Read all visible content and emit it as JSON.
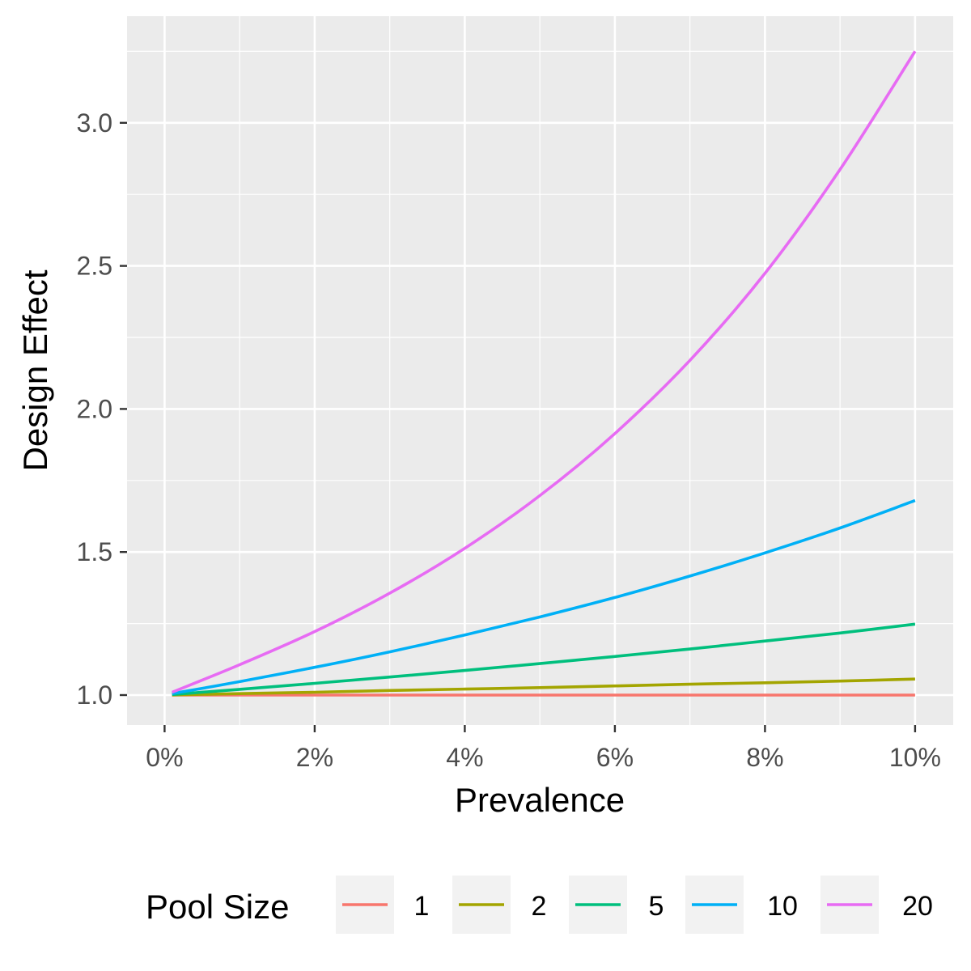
{
  "chart_data": {
    "type": "line",
    "title": "",
    "xlabel": "Prevalence",
    "ylabel": "Design Effect",
    "xlim": [
      0,
      0.1
    ],
    "ylim": [
      0.9,
      3.25
    ],
    "x_ticks": [
      0,
      0.02,
      0.04,
      0.06,
      0.08,
      0.1
    ],
    "x_tick_labels": [
      "0%",
      "2%",
      "4%",
      "6%",
      "8%",
      "10%"
    ],
    "y_ticks": [
      1.0,
      1.5,
      2.0,
      2.5,
      3.0
    ],
    "y_tick_labels": [
      "1.0",
      "1.5",
      "2.0",
      "2.5",
      "3.0"
    ],
    "grid": true,
    "legend": {
      "title": "Pool Size",
      "position": "bottom"
    },
    "x": [
      0.001,
      0.01,
      0.02,
      0.03,
      0.04,
      0.05,
      0.06,
      0.07,
      0.08,
      0.09,
      0.1
    ],
    "series": [
      {
        "name": "1",
        "color": "#F8766D",
        "values": [
          1.0,
          1.0,
          1.0,
          1.0,
          1.0,
          1.0,
          1.0,
          1.0,
          1.0,
          1.0,
          1.0
        ]
      },
      {
        "name": "2",
        "color": "#A3A500",
        "values": [
          1.0005,
          1.005,
          1.01,
          1.016,
          1.021,
          1.026,
          1.032,
          1.038,
          1.043,
          1.049,
          1.056
        ]
      },
      {
        "name": "5",
        "color": "#00BF7D",
        "values": [
          1.002,
          1.02,
          1.041,
          1.063,
          1.086,
          1.11,
          1.135,
          1.161,
          1.189,
          1.217,
          1.248
        ]
      },
      {
        "name": "10",
        "color": "#00B0F6",
        "values": [
          1.005,
          1.047,
          1.097,
          1.151,
          1.21,
          1.273,
          1.341,
          1.416,
          1.497,
          1.584,
          1.68
        ]
      },
      {
        "name": "20",
        "color": "#E76BF3",
        "values": [
          1.01,
          1.106,
          1.222,
          1.356,
          1.513,
          1.697,
          1.914,
          2.17,
          2.474,
          2.837,
          3.25
        ]
      }
    ]
  }
}
